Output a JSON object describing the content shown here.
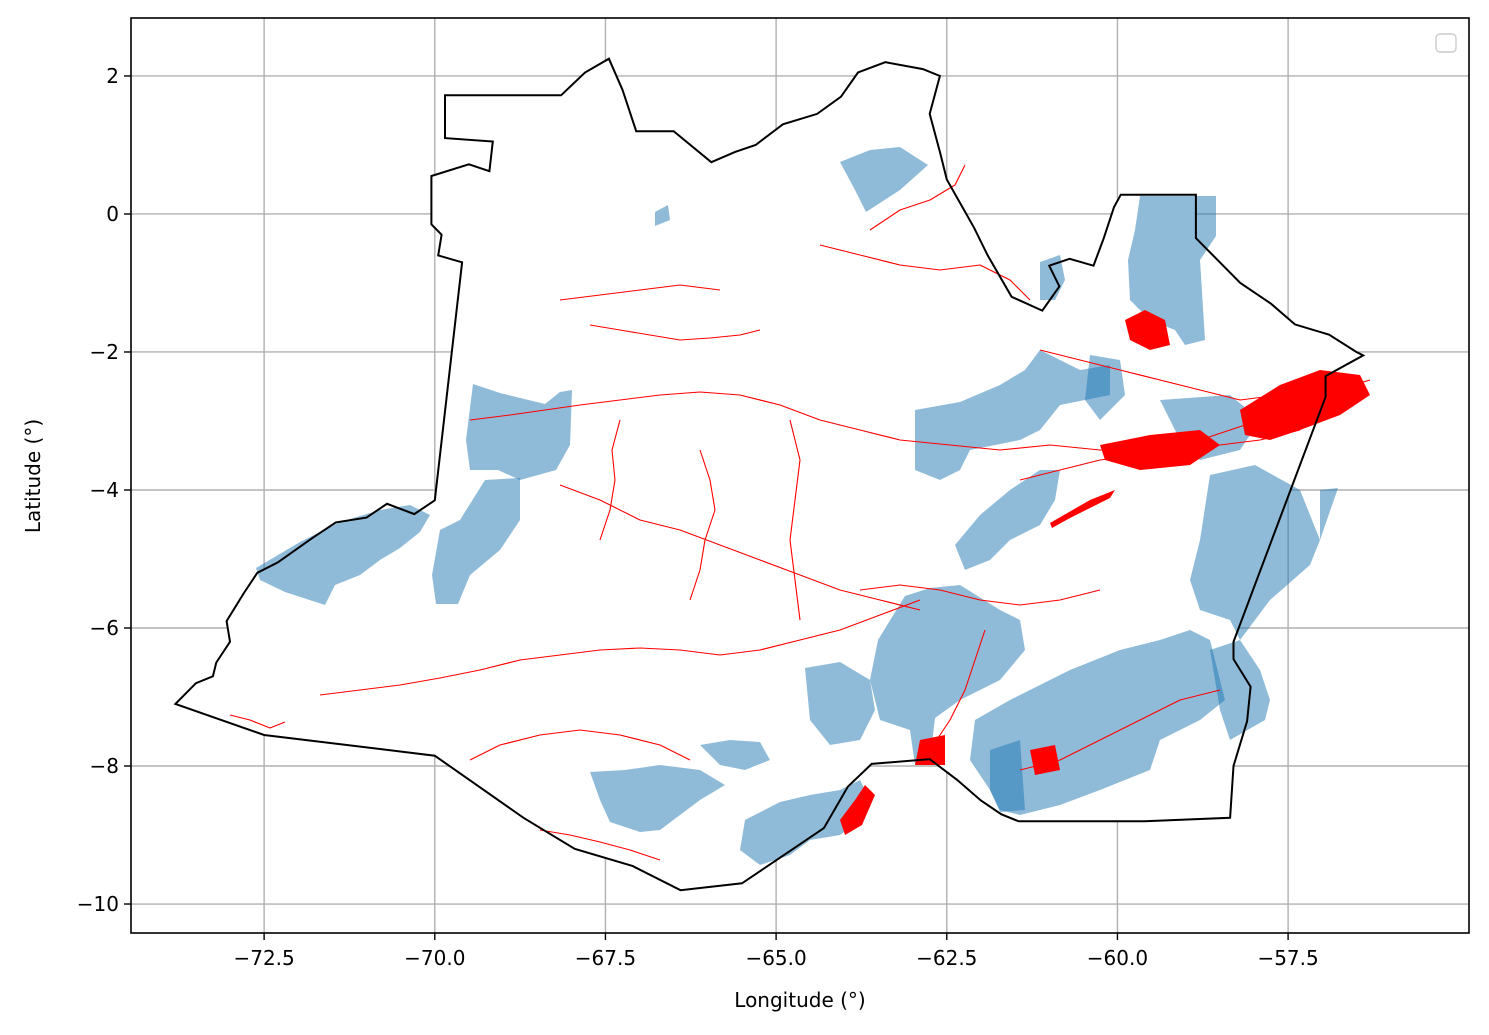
{
  "chart_data": {
    "type": "map",
    "xlabel": "Longitude (°)",
    "ylabel": "Latitude (°)",
    "xlim": [
      -74.45,
      -54.85
    ],
    "ylim": [
      -10.42,
      2.84
    ],
    "grid": true,
    "legend": {
      "placement": "top-right",
      "entries": []
    },
    "x_ticks": [
      -72.5,
      -70.0,
      -67.5,
      -65.0,
      -62.5,
      -60.0,
      -57.5
    ],
    "x_tick_labels": [
      "−72.5",
      "−70.0",
      "−67.5",
      "−65.0",
      "−62.5",
      "−60.0",
      "−57.5"
    ],
    "y_ticks": [
      2,
      0,
      -2,
      -4,
      -6,
      -8,
      -10
    ],
    "y_tick_labels": [
      "2",
      "0",
      "−2",
      "−4",
      "−6",
      "−8",
      "−10"
    ],
    "layers": [
      {
        "kind": "boundary",
        "color": "#000000"
      },
      {
        "kind": "shaded-areas",
        "color": "#1f77b4",
        "opacity": 0.5
      },
      {
        "kind": "line-features",
        "color": "#ff0000"
      }
    ],
    "boundary": [
      [
        -73.8,
        -7.1
      ],
      [
        -73.5,
        -6.8
      ],
      [
        -73.25,
        -6.7
      ],
      [
        -73.2,
        -6.5
      ],
      [
        -73.0,
        -6.2
      ],
      [
        -73.05,
        -5.9
      ],
      [
        -72.8,
        -5.5
      ],
      [
        -72.6,
        -5.2
      ],
      [
        -72.3,
        -5.05
      ],
      [
        -71.8,
        -4.7
      ],
      [
        -71.45,
        -4.47
      ],
      [
        -71.0,
        -4.4
      ],
      [
        -70.7,
        -4.2
      ],
      [
        -70.3,
        -4.35
      ],
      [
        -70.0,
        -4.15
      ],
      [
        -69.6,
        -0.7
      ],
      [
        -69.95,
        -0.6
      ],
      [
        -69.9,
        -0.3
      ],
      [
        -70.05,
        -0.15
      ],
      [
        -70.05,
        0.55
      ],
      [
        -69.5,
        0.72
      ],
      [
        -69.2,
        0.62
      ],
      [
        -69.15,
        1.05
      ],
      [
        -69.85,
        1.1
      ],
      [
        -69.85,
        1.72
      ],
      [
        -68.15,
        1.72
      ],
      [
        -67.8,
        2.05
      ],
      [
        -67.45,
        2.25
      ],
      [
        -67.25,
        1.8
      ],
      [
        -67.05,
        1.2
      ],
      [
        -66.5,
        1.2
      ],
      [
        -65.95,
        0.75
      ],
      [
        -65.6,
        0.9
      ],
      [
        -65.3,
        1.0
      ],
      [
        -64.9,
        1.3
      ],
      [
        -64.4,
        1.45
      ],
      [
        -64.05,
        1.7
      ],
      [
        -63.8,
        2.05
      ],
      [
        -63.4,
        2.2
      ],
      [
        -62.85,
        2.1
      ],
      [
        -62.6,
        2.0
      ],
      [
        -62.75,
        1.45
      ],
      [
        -62.6,
        0.9
      ],
      [
        -62.5,
        0.5
      ],
      [
        -62.1,
        -0.2
      ],
      [
        -61.9,
        -0.6
      ],
      [
        -61.55,
        -1.2
      ],
      [
        -61.1,
        -1.4
      ],
      [
        -60.85,
        -1.05
      ],
      [
        -61.0,
        -0.75
      ],
      [
        -60.7,
        -0.65
      ],
      [
        -60.35,
        -0.75
      ],
      [
        -60.2,
        -0.35
      ],
      [
        -60.05,
        0.1
      ],
      [
        -59.95,
        0.28
      ],
      [
        -58.85,
        0.28
      ],
      [
        -58.85,
        -0.35
      ],
      [
        -58.2,
        -1.0
      ],
      [
        -57.75,
        -1.3
      ],
      [
        -57.4,
        -1.6
      ],
      [
        -56.9,
        -1.75
      ],
      [
        -56.5,
        -2.0
      ],
      [
        -56.4,
        -2.05
      ],
      [
        -56.95,
        -2.35
      ],
      [
        -56.95,
        -2.65
      ],
      [
        -58.3,
        -6.2
      ],
      [
        -58.3,
        -6.45
      ],
      [
        -58.05,
        -6.85
      ],
      [
        -58.1,
        -7.35
      ],
      [
        -58.3,
        -8.0
      ],
      [
        -58.35,
        -8.75
      ],
      [
        -59.6,
        -8.8
      ],
      [
        -61.45,
        -8.8
      ],
      [
        -61.7,
        -8.7
      ],
      [
        -62.0,
        -8.5
      ],
      [
        -62.35,
        -8.2
      ],
      [
        -62.75,
        -7.9
      ],
      [
        -63.6,
        -7.97
      ],
      [
        -63.95,
        -8.3
      ],
      [
        -64.3,
        -8.9
      ],
      [
        -64.75,
        -9.2
      ],
      [
        -65.5,
        -9.7
      ],
      [
        -66.4,
        -9.8
      ],
      [
        -67.1,
        -9.45
      ],
      [
        -67.95,
        -9.2
      ],
      [
        -68.7,
        -8.75
      ],
      [
        -70.0,
        -7.85
      ],
      [
        -72.5,
        -7.55
      ],
      [
        -73.8,
        -7.1
      ]
    ]
  }
}
